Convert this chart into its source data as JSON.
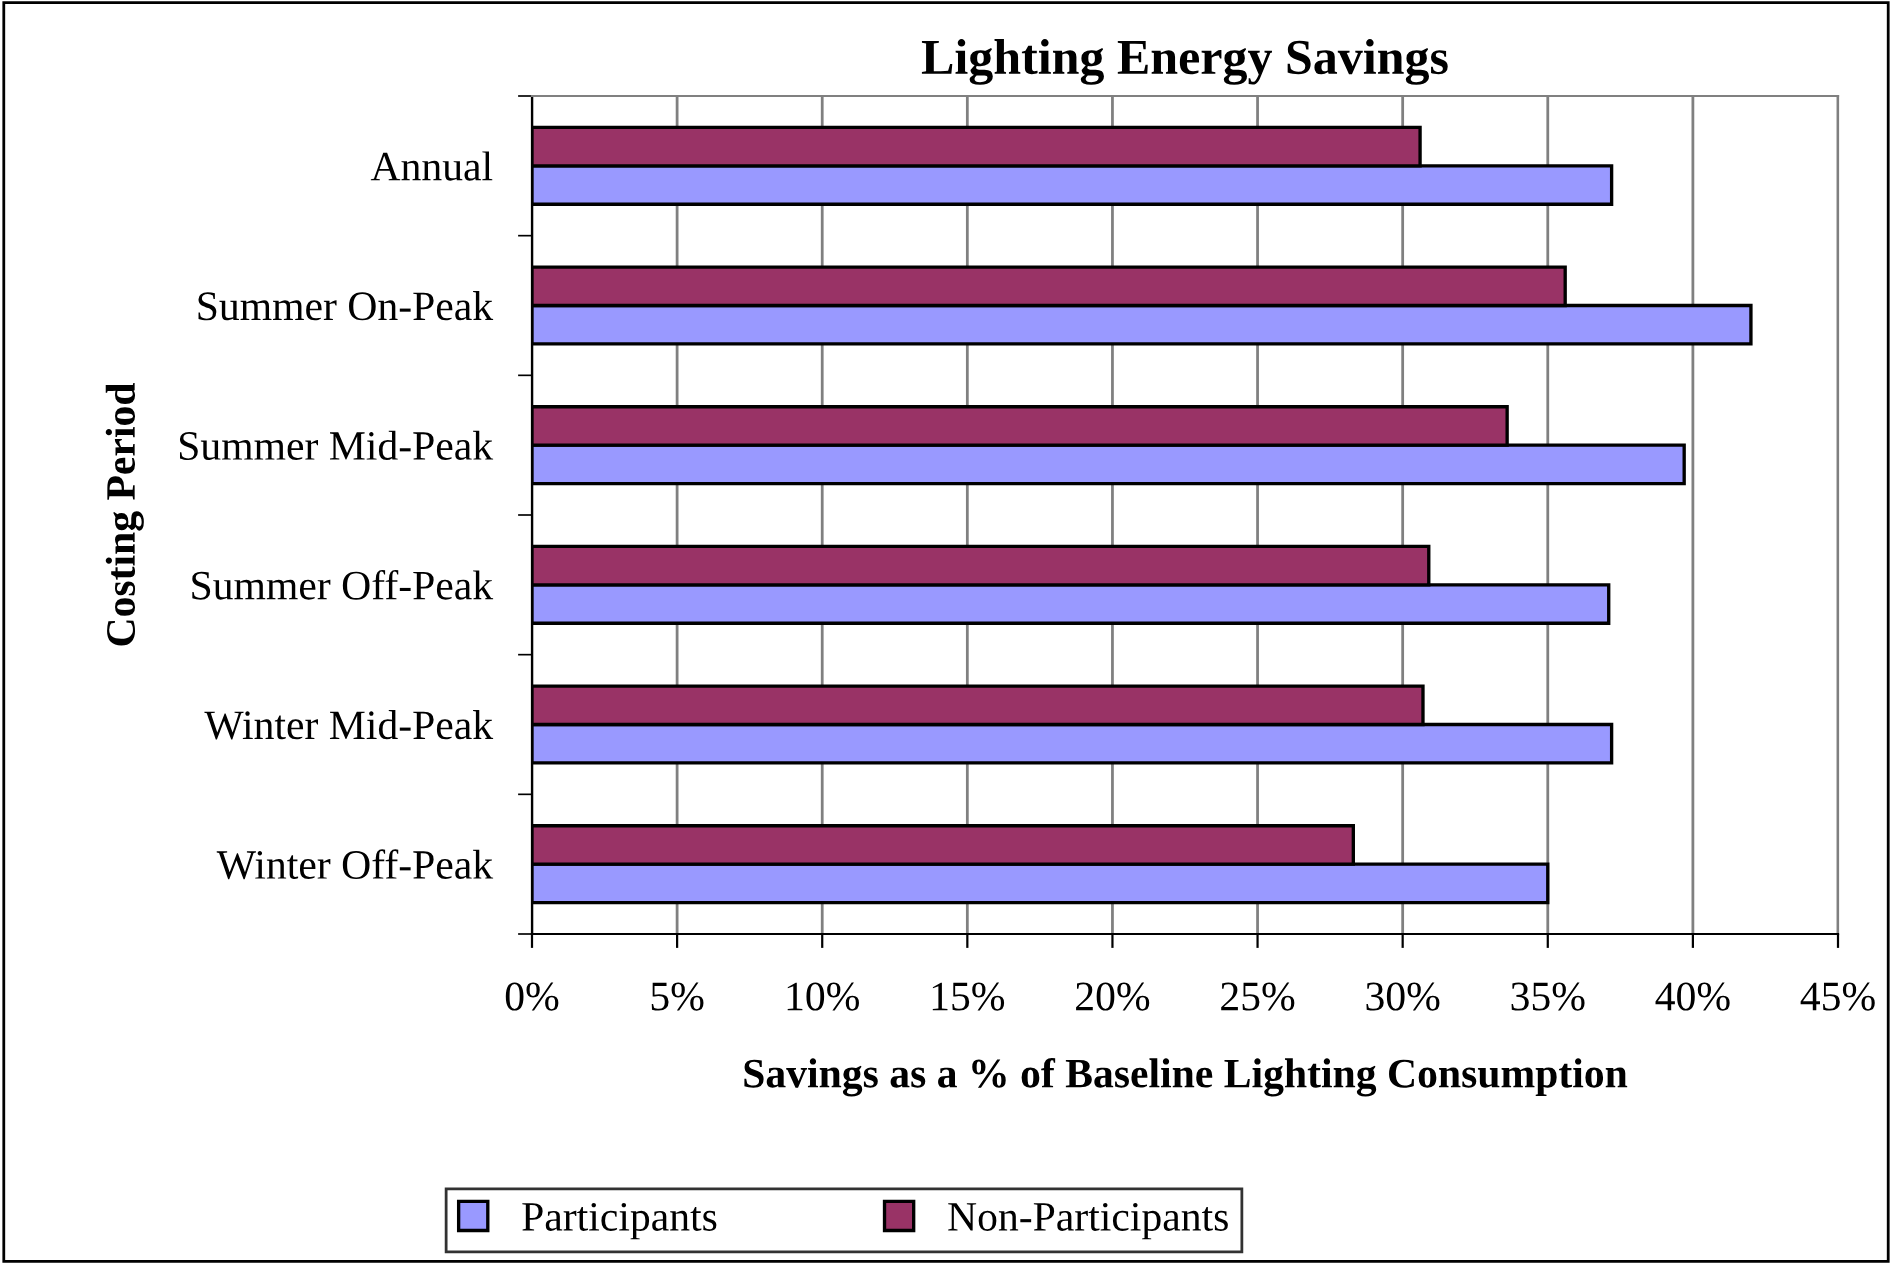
{
  "chart_data": {
    "type": "bar",
    "orientation": "horizontal",
    "title": "Lighting Energy Savings",
    "xlabel": "Savings as a % of Baseline Lighting Consumption",
    "ylabel": "Costing Period",
    "categories": [
      "Annual",
      "Summer On-Peak",
      "Summer Mid-Peak",
      "Summer Off-Peak",
      "Winter Mid-Peak",
      "Winter Off-Peak"
    ],
    "series": [
      {
        "name": "Participants",
        "color": "#9999ff",
        "values": [
          37.2,
          42.0,
          39.7,
          37.1,
          37.2,
          35.0
        ]
      },
      {
        "name": "Non-Participants",
        "color": "#993366",
        "values": [
          30.6,
          35.6,
          33.6,
          30.9,
          30.7,
          28.3
        ]
      }
    ],
    "xlim": [
      0,
      45
    ],
    "xticks": [
      {
        "value": 0,
        "label": "0%"
      },
      {
        "value": 5,
        "label": "5%"
      },
      {
        "value": 10,
        "label": "10%"
      },
      {
        "value": 15,
        "label": "15%"
      },
      {
        "value": 20,
        "label": "20%"
      },
      {
        "value": 25,
        "label": "25%"
      },
      {
        "value": 30,
        "label": "30%"
      },
      {
        "value": 35,
        "label": "35%"
      },
      {
        "value": 40,
        "label": "40%"
      },
      {
        "value": 45,
        "label": "45%"
      }
    ],
    "grid": "x",
    "legend": "bottom"
  }
}
